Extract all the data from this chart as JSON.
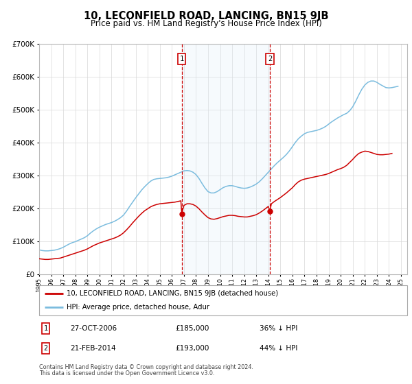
{
  "title": "10, LECONFIELD ROAD, LANCING, BN15 9JB",
  "subtitle": "Price paid vs. HM Land Registry's House Price Index (HPI)",
  "title_fontsize": 10.5,
  "subtitle_fontsize": 8.5,
  "ylim": [
    0,
    700000
  ],
  "xlim_start": 1995.0,
  "xlim_end": 2025.5,
  "xtick_years": [
    1995,
    1996,
    1997,
    1998,
    1999,
    2000,
    2001,
    2002,
    2003,
    2004,
    2005,
    2006,
    2007,
    2008,
    2009,
    2010,
    2011,
    2012,
    2013,
    2014,
    2015,
    2016,
    2017,
    2018,
    2019,
    2020,
    2021,
    2022,
    2023,
    2024,
    2025
  ],
  "sale1_x": 2006.82,
  "sale1_y": 185000,
  "sale1_label": "27-OCT-2006",
  "sale1_price": "£185,000",
  "sale1_pct": "36% ↓ HPI",
  "sale2_x": 2014.13,
  "sale2_y": 193000,
  "sale2_label": "21-FEB-2014",
  "sale2_price": "£193,000",
  "sale2_pct": "44% ↓ HPI",
  "hpi_color": "#7bbcde",
  "price_color": "#cc0000",
  "shade_color": "#ddeef8",
  "marker_box_color": "#cc0000",
  "footnote1": "Contains HM Land Registry data © Crown copyright and database right 2024.",
  "footnote2": "This data is licensed under the Open Government Licence v3.0.",
  "legend_line1": "10, LECONFIELD ROAD, LANCING, BN15 9JB (detached house)",
  "legend_line2": "HPI: Average price, detached house, Adur",
  "hpi_data_x": [
    1995.0,
    1995.25,
    1995.5,
    1995.75,
    1996.0,
    1996.25,
    1996.5,
    1996.75,
    1997.0,
    1997.25,
    1997.5,
    1997.75,
    1998.0,
    1998.25,
    1998.5,
    1998.75,
    1999.0,
    1999.25,
    1999.5,
    1999.75,
    2000.0,
    2000.25,
    2000.5,
    2000.75,
    2001.0,
    2001.25,
    2001.5,
    2001.75,
    2002.0,
    2002.25,
    2002.5,
    2002.75,
    2003.0,
    2003.25,
    2003.5,
    2003.75,
    2004.0,
    2004.25,
    2004.5,
    2004.75,
    2005.0,
    2005.25,
    2005.5,
    2005.75,
    2006.0,
    2006.25,
    2006.5,
    2006.75,
    2007.0,
    2007.25,
    2007.5,
    2007.75,
    2008.0,
    2008.25,
    2008.5,
    2008.75,
    2009.0,
    2009.25,
    2009.5,
    2009.75,
    2010.0,
    2010.25,
    2010.5,
    2010.75,
    2011.0,
    2011.25,
    2011.5,
    2011.75,
    2012.0,
    2012.25,
    2012.5,
    2012.75,
    2013.0,
    2013.25,
    2013.5,
    2013.75,
    2014.0,
    2014.25,
    2014.5,
    2014.75,
    2015.0,
    2015.25,
    2015.5,
    2015.75,
    2016.0,
    2016.25,
    2016.5,
    2016.75,
    2017.0,
    2017.25,
    2017.5,
    2017.75,
    2018.0,
    2018.25,
    2018.5,
    2018.75,
    2019.0,
    2019.25,
    2019.5,
    2019.75,
    2020.0,
    2020.25,
    2020.5,
    2020.75,
    2021.0,
    2021.25,
    2021.5,
    2021.75,
    2022.0,
    2022.25,
    2022.5,
    2022.75,
    2023.0,
    2023.25,
    2023.5,
    2023.75,
    2024.0,
    2024.25,
    2024.5,
    2024.75
  ],
  "hpi_data_y": [
    75000,
    73000,
    72000,
    72000,
    73000,
    74000,
    76000,
    79000,
    83000,
    88000,
    93000,
    97000,
    100000,
    104000,
    108000,
    112000,
    118000,
    126000,
    133000,
    139000,
    144000,
    148000,
    152000,
    155000,
    158000,
    162000,
    167000,
    173000,
    181000,
    193000,
    207000,
    220000,
    233000,
    245000,
    257000,
    267000,
    276000,
    284000,
    289000,
    291000,
    292000,
    293000,
    294000,
    296000,
    299000,
    303000,
    307000,
    311000,
    315000,
    316000,
    315000,
    311000,
    304000,
    292000,
    277000,
    263000,
    252000,
    248000,
    248000,
    252000,
    258000,
    264000,
    268000,
    270000,
    270000,
    268000,
    265000,
    263000,
    262000,
    263000,
    266000,
    270000,
    275000,
    282000,
    291000,
    301000,
    311000,
    321000,
    331000,
    340000,
    348000,
    356000,
    365000,
    376000,
    389000,
    402000,
    413000,
    421000,
    428000,
    432000,
    434000,
    436000,
    438000,
    441000,
    445000,
    450000,
    457000,
    464000,
    470000,
    476000,
    481000,
    486000,
    490000,
    498000,
    510000,
    527000,
    546000,
    563000,
    576000,
    584000,
    588000,
    588000,
    584000,
    578000,
    573000,
    568000,
    567000,
    568000,
    570000,
    572000
  ],
  "price_data_x": [
    1995.0,
    1995.25,
    1995.5,
    1995.75,
    1996.0,
    1996.25,
    1996.5,
    1996.75,
    1997.0,
    1997.25,
    1997.5,
    1997.75,
    1998.0,
    1998.25,
    1998.5,
    1998.75,
    1999.0,
    1999.25,
    1999.5,
    1999.75,
    2000.0,
    2000.25,
    2000.5,
    2000.75,
    2001.0,
    2001.25,
    2001.5,
    2001.75,
    2002.0,
    2002.25,
    2002.5,
    2002.75,
    2003.0,
    2003.25,
    2003.5,
    2003.75,
    2004.0,
    2004.25,
    2004.5,
    2004.75,
    2005.0,
    2005.25,
    2005.5,
    2005.75,
    2006.0,
    2006.25,
    2006.5,
    2006.75,
    2006.82,
    2007.0,
    2007.25,
    2007.5,
    2007.75,
    2008.0,
    2008.25,
    2008.5,
    2008.75,
    2009.0,
    2009.25,
    2009.5,
    2009.75,
    2010.0,
    2010.25,
    2010.5,
    2010.75,
    2011.0,
    2011.25,
    2011.5,
    2011.75,
    2012.0,
    2012.25,
    2012.5,
    2012.75,
    2013.0,
    2013.25,
    2013.5,
    2013.75,
    2014.0,
    2014.13,
    2014.25,
    2014.5,
    2014.75,
    2015.0,
    2015.25,
    2015.5,
    2015.75,
    2016.0,
    2016.25,
    2016.5,
    2016.75,
    2017.0,
    2017.25,
    2017.5,
    2017.75,
    2018.0,
    2018.25,
    2018.5,
    2018.75,
    2019.0,
    2019.25,
    2019.5,
    2019.75,
    2020.0,
    2020.25,
    2020.5,
    2020.75,
    2021.0,
    2021.25,
    2021.5,
    2021.75,
    2022.0,
    2022.25,
    2022.5,
    2022.75,
    2023.0,
    2023.25,
    2023.5,
    2023.75,
    2024.0,
    2024.25
  ],
  "price_data_y": [
    48000,
    47000,
    46000,
    46000,
    47000,
    48000,
    49000,
    50000,
    53000,
    56000,
    59000,
    62000,
    65000,
    68000,
    71000,
    74000,
    78000,
    83000,
    88000,
    92000,
    96000,
    99000,
    102000,
    105000,
    108000,
    111000,
    115000,
    120000,
    127000,
    136000,
    146000,
    157000,
    167000,
    177000,
    186000,
    194000,
    200000,
    206000,
    210000,
    213000,
    215000,
    216000,
    217000,
    218000,
    219000,
    220000,
    222000,
    224000,
    185000,
    210000,
    215000,
    215000,
    213000,
    208000,
    200000,
    190000,
    181000,
    173000,
    169000,
    168000,
    170000,
    173000,
    176000,
    178000,
    180000,
    180000,
    179000,
    177000,
    176000,
    175000,
    175000,
    177000,
    179000,
    182000,
    187000,
    193000,
    200000,
    207000,
    193000,
    215000,
    222000,
    228000,
    234000,
    241000,
    248000,
    256000,
    264000,
    274000,
    282000,
    287000,
    290000,
    292000,
    294000,
    296000,
    298000,
    300000,
    302000,
    304000,
    307000,
    311000,
    315000,
    319000,
    322000,
    326000,
    332000,
    341000,
    350000,
    360000,
    368000,
    372000,
    375000,
    374000,
    371000,
    368000,
    365000,
    364000,
    364000,
    365000,
    366000,
    368000
  ]
}
